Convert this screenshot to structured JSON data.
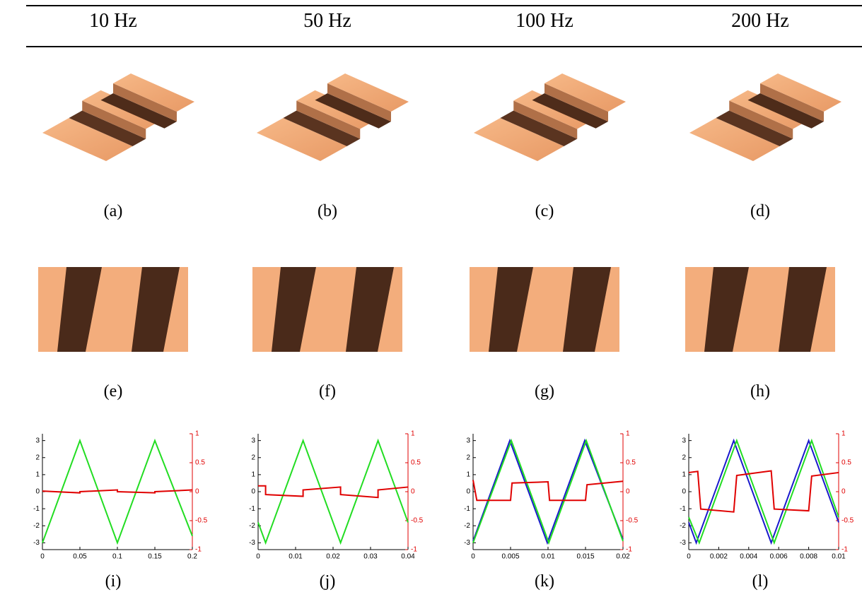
{
  "header": {
    "columns": [
      "10 Hz",
      "50 Hz",
      "100 Hz",
      "200 Hz"
    ]
  },
  "captions": [
    "(a)",
    "(b)",
    "(c)",
    "(d)",
    "(e)",
    "(f)",
    "(g)",
    "(h)",
    "(i)",
    "(j)",
    "(k)",
    "(l)"
  ],
  "chart_data": [
    {
      "type": "line",
      "xlim": [
        0,
        0.2
      ],
      "xticks": [
        0,
        0.05,
        0.1,
        0.15,
        0.2
      ],
      "ylim": [
        -3.4,
        3.4
      ],
      "yticks": [
        3,
        2,
        1,
        0,
        -1,
        -2,
        -3
      ],
      "y2lim": [
        -1,
        1
      ],
      "y2ticks": [
        1,
        0.5,
        0,
        -0.5,
        -1
      ],
      "y2color": "#e00000",
      "series": [
        {
          "color": "#22dd22",
          "x": [
            0,
            0.05,
            0.1,
            0.15,
            0.2
          ],
          "values": [
            -3,
            3,
            -3,
            3,
            -2.6
          ]
        },
        {
          "color": "#e00000",
          "axis": "y2",
          "x": [
            0,
            0.05,
            0.05,
            0.1,
            0.1,
            0.15,
            0.15,
            0.2
          ],
          "values": [
            0.01,
            -0.02,
            0,
            0.03,
            0,
            -0.02,
            0,
            0.03
          ]
        }
      ]
    },
    {
      "type": "line",
      "xlim": [
        0,
        0.04
      ],
      "xticks": [
        0,
        0.01,
        0.02,
        0.03,
        0.04
      ],
      "ylim": [
        -3.4,
        3.4
      ],
      "yticks": [
        3,
        2,
        1,
        0,
        -1,
        -2,
        -3
      ],
      "y2lim": [
        -1,
        1
      ],
      "y2ticks": [
        1,
        0.5,
        0,
        -0.5,
        -1
      ],
      "y2color": "#e00000",
      "series": [
        {
          "color": "#22dd22",
          "x": [
            0,
            0.002,
            0.012,
            0.022,
            0.032,
            0.04
          ],
          "values": [
            -1.8,
            -3,
            3,
            -3,
            3,
            -1.8
          ]
        },
        {
          "color": "#e00000",
          "axis": "y2",
          "x": [
            0,
            0.002,
            0.002,
            0.012,
            0.012,
            0.022,
            0.022,
            0.032,
            0.032,
            0.04
          ],
          "values": [
            0.1,
            0.1,
            -0.05,
            -0.08,
            0.03,
            0.08,
            -0.05,
            -0.1,
            0.03,
            0.08
          ]
        }
      ]
    },
    {
      "type": "line",
      "xlim": [
        0,
        0.02
      ],
      "xticks": [
        0,
        0.005,
        0.01,
        0.015,
        0.02
      ],
      "ylim": [
        -3.4,
        3.4
      ],
      "yticks": [
        3,
        2,
        1,
        0,
        -1,
        -2,
        -3
      ],
      "y2lim": [
        -1,
        1
      ],
      "y2ticks": [
        1,
        0.5,
        0,
        -0.5,
        -1
      ],
      "y2color": "#e00000",
      "series": [
        {
          "color": "#1a1acc",
          "x": [
            0,
            0.0049,
            0.0099,
            0.0149,
            0.02
          ],
          "values": [
            -2.9,
            3,
            -3,
            3,
            -2.8
          ]
        },
        {
          "color": "#22dd22",
          "x": [
            0,
            0.0051,
            0.0101,
            0.0151,
            0.02
          ],
          "values": [
            -3,
            3,
            -3,
            3,
            -2.9
          ]
        },
        {
          "color": "#e00000",
          "axis": "y2",
          "x": [
            0,
            0.0005,
            0.005,
            0.0052,
            0.01,
            0.0102,
            0.015,
            0.0152,
            0.02
          ],
          "values": [
            0.2,
            -0.15,
            -0.15,
            0.15,
            0.17,
            -0.15,
            -0.15,
            0.12,
            0.18
          ]
        }
      ]
    },
    {
      "type": "line",
      "xlim": [
        0,
        0.01
      ],
      "xticks": [
        0,
        0.002,
        0.004,
        0.006,
        0.008,
        0.01
      ],
      "ylim": [
        -3.4,
        3.4
      ],
      "yticks": [
        3,
        2,
        1,
        0,
        -1,
        -2,
        -3
      ],
      "y2lim": [
        -1,
        1
      ],
      "y2ticks": [
        1,
        0.5,
        0,
        -0.5,
        -1
      ],
      "y2color": "#e00000",
      "series": [
        {
          "color": "#1a1acc",
          "x": [
            0,
            0.0005,
            0.003,
            0.0055,
            0.008,
            0.01
          ],
          "values": [
            -1.8,
            -3,
            3,
            -3,
            3,
            -1.8
          ]
        },
        {
          "color": "#22dd22",
          "x": [
            0,
            0.0007,
            0.0032,
            0.0057,
            0.0082,
            0.01
          ],
          "values": [
            -1.5,
            -3,
            3,
            -3,
            3,
            -1.5
          ]
        },
        {
          "color": "#e00000",
          "axis": "y2",
          "x": [
            0,
            0.0006,
            0.0008,
            0.003,
            0.0032,
            0.0055,
            0.0057,
            0.008,
            0.0082,
            0.01
          ],
          "values": [
            0.33,
            0.35,
            -0.3,
            -0.35,
            0.28,
            0.36,
            -0.3,
            -0.33,
            0.27,
            0.33
          ]
        }
      ]
    }
  ]
}
